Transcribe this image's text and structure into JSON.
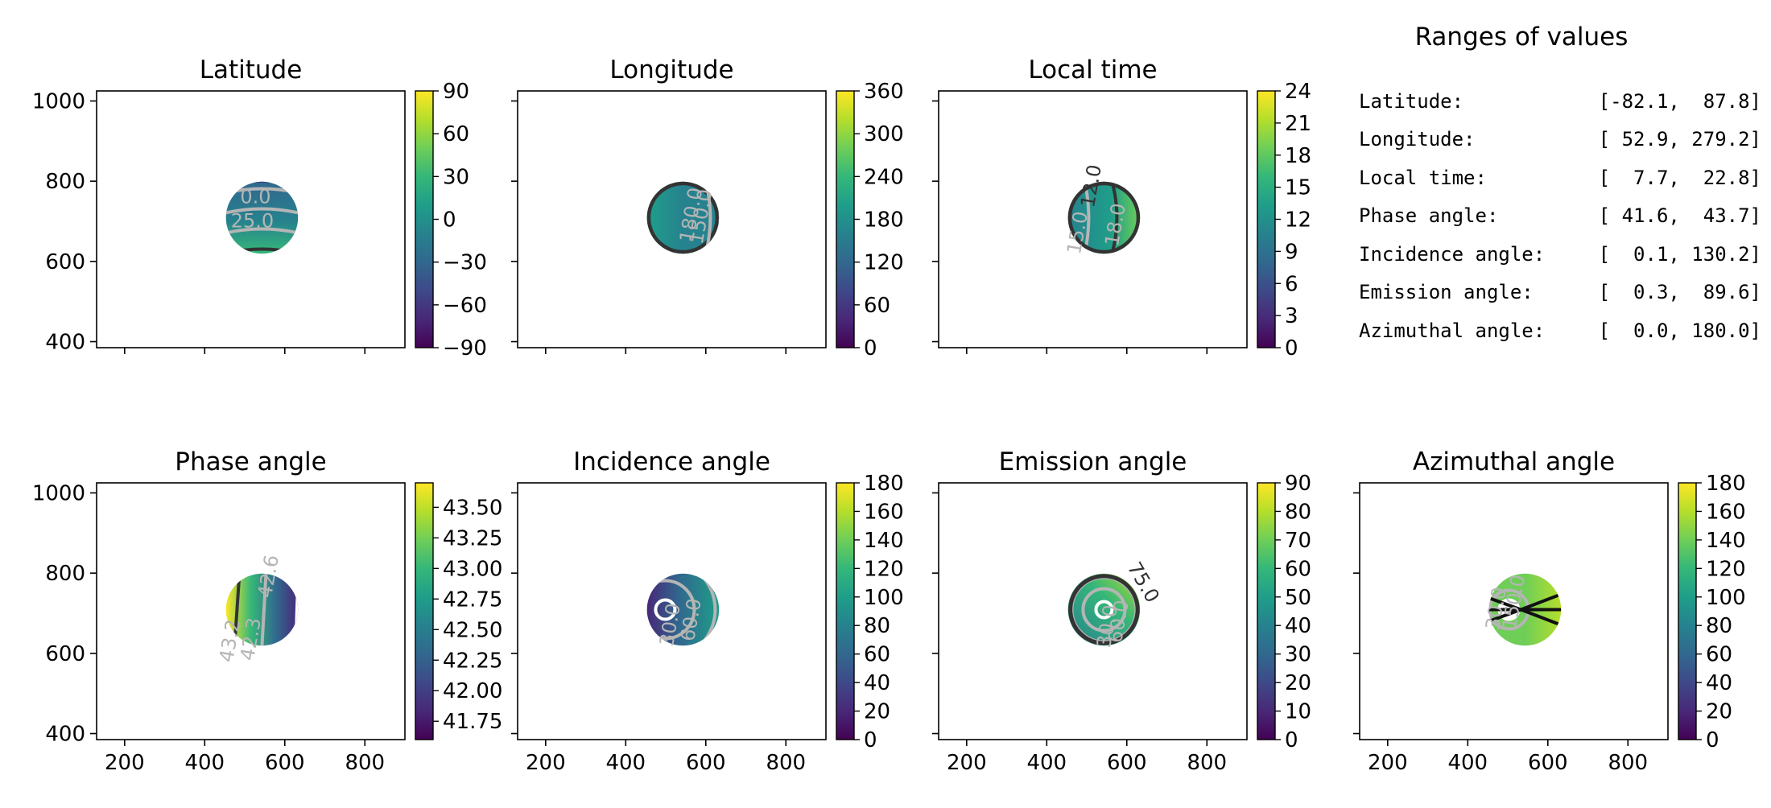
{
  "chart_data": [
    {
      "type": "heatmap",
      "title": "Latitude",
      "xlim": [
        130,
        900
      ],
      "ylim": [
        385,
        1025
      ],
      "x_ticks": [
        "200",
        "400",
        "600",
        "800"
      ],
      "y_ticks": [
        "400",
        "600",
        "800",
        "1000"
      ],
      "show_xticklabels": false,
      "show_yticklabels": true,
      "colorbar": {
        "min": -90,
        "max": 90,
        "ticks": [
          "90",
          "60",
          "30",
          "0",
          "−30",
          "−60",
          "−90"
        ]
      },
      "disc": {
        "center": [
          543,
          709
        ],
        "radius": 90
      },
      "contour_labels": [
        "0.0",
        "25.0"
      ]
    },
    {
      "type": "heatmap",
      "title": "Longitude",
      "xlim": [
        130,
        900
      ],
      "ylim": [
        385,
        1025
      ],
      "x_ticks": [
        "200",
        "400",
        "600",
        "800"
      ],
      "y_ticks": [
        "400",
        "600",
        "800",
        "1000"
      ],
      "show_xticklabels": false,
      "show_yticklabels": false,
      "colorbar": {
        "min": 0,
        "max": 360,
        "ticks": [
          "360",
          "300",
          "240",
          "180",
          "120",
          "60",
          "0"
        ]
      },
      "disc": {
        "center": [
          543,
          709
        ],
        "radius": 90
      },
      "contour_labels": [
        "180.0",
        "150.0"
      ]
    },
    {
      "type": "heatmap",
      "title": "Local time",
      "xlim": [
        130,
        900
      ],
      "ylim": [
        385,
        1025
      ],
      "x_ticks": [
        "200",
        "400",
        "600",
        "800"
      ],
      "y_ticks": [
        "400",
        "600",
        "800",
        "1000"
      ],
      "show_xticklabels": false,
      "show_yticklabels": false,
      "colorbar": {
        "min": 0,
        "max": 24,
        "ticks": [
          "24",
          "21",
          "18",
          "15",
          "12",
          "9",
          "6",
          "3",
          "0"
        ]
      },
      "disc": {
        "center": [
          543,
          709
        ],
        "radius": 90
      },
      "contour_labels": [
        "12.0",
        "18.0",
        "15.0"
      ]
    },
    {
      "type": "heatmap",
      "title": "Phase angle",
      "xlim": [
        130,
        900
      ],
      "ylim": [
        385,
        1025
      ],
      "x_ticks": [
        "200",
        "400",
        "600",
        "800"
      ],
      "y_ticks": [
        "400",
        "600",
        "800",
        "1000"
      ],
      "show_xticklabels": true,
      "show_yticklabels": true,
      "colorbar": {
        "min": 41.6,
        "max": 43.7,
        "ticks": [
          "43.50",
          "43.25",
          "43.00",
          "42.75",
          "42.50",
          "42.25",
          "42.00",
          "41.75"
        ]
      },
      "disc": {
        "center": [
          543,
          709
        ],
        "radius": 90
      },
      "contour_labels": [
        "42.6",
        "43.2",
        "42.3"
      ]
    },
    {
      "type": "heatmap",
      "title": "Incidence angle",
      "xlim": [
        130,
        900
      ],
      "ylim": [
        385,
        1025
      ],
      "x_ticks": [
        "200",
        "400",
        "600",
        "800"
      ],
      "y_ticks": [
        "400",
        "600",
        "800",
        "1000"
      ],
      "show_xticklabels": true,
      "show_yticklabels": false,
      "colorbar": {
        "min": 0,
        "max": 180,
        "ticks": [
          "180",
          "160",
          "140",
          "120",
          "100",
          "80",
          "60",
          "40",
          "20",
          "0"
        ]
      },
      "disc": {
        "center": [
          543,
          709
        ],
        "radius": 90
      },
      "contour_labels": [
        "30.0",
        "60.0"
      ]
    },
    {
      "type": "heatmap",
      "title": "Emission angle",
      "xlim": [
        130,
        900
      ],
      "ylim": [
        385,
        1025
      ],
      "x_ticks": [
        "200",
        "400",
        "600",
        "800"
      ],
      "y_ticks": [
        "400",
        "600",
        "800",
        "1000"
      ],
      "show_xticklabels": true,
      "show_yticklabels": false,
      "colorbar": {
        "min": 0,
        "max": 90,
        "ticks": [
          "90",
          "80",
          "70",
          "60",
          "50",
          "40",
          "30",
          "20",
          "10",
          "0"
        ]
      },
      "disc": {
        "center": [
          543,
          709
        ],
        "radius": 90
      },
      "contour_labels": [
        "75.0",
        "60.0",
        "30.0"
      ]
    },
    {
      "type": "heatmap",
      "title": "Azimuthal angle",
      "xlim": [
        130,
        900
      ],
      "ylim": [
        385,
        1025
      ],
      "x_ticks": [
        "200",
        "400",
        "600",
        "800"
      ],
      "y_ticks": [
        "400",
        "600",
        "800",
        "1000"
      ],
      "show_xticklabels": true,
      "show_yticklabels": false,
      "colorbar": {
        "min": 0,
        "max": 180,
        "ticks": [
          "180",
          "160",
          "140",
          "120",
          "100",
          "80",
          "60",
          "40",
          "20",
          "0"
        ]
      },
      "disc": {
        "center": [
          543,
          709
        ],
        "radius": 90
      },
      "contour_labels": [
        "30.0",
        "150.0"
      ]
    }
  ],
  "ranges": {
    "title": "Ranges of values",
    "rows": [
      {
        "label": "Latitude:",
        "value": "[-82.1,  87.8]"
      },
      {
        "label": "Longitude:",
        "value": "[ 52.9, 279.2]"
      },
      {
        "label": "Local time:",
        "value": "[  7.7,  22.8]"
      },
      {
        "label": "Phase angle:",
        "value": "[ 41.6,  43.7]"
      },
      {
        "label": "Incidence angle:",
        "value": "[  0.1, 130.2]"
      },
      {
        "label": "Emission angle:",
        "value": "[  0.3,  89.6]"
      },
      {
        "label": "Azimuthal angle:",
        "value": "[  0.0, 180.0]"
      }
    ]
  },
  "colors": {
    "viridis": [
      "#440154",
      "#482878",
      "#3e4989",
      "#31688e",
      "#26828e",
      "#1f9e89",
      "#35b779",
      "#6ece58",
      "#b5de2b",
      "#fde725"
    ],
    "contour_light": "#b5b5b5",
    "contour_dark": "#333333"
  }
}
